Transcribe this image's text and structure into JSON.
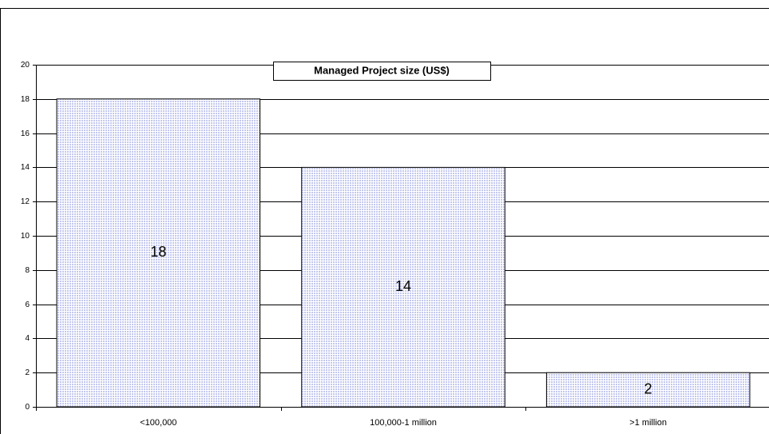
{
  "chart_data": {
    "type": "bar",
    "title": "Managed Project size (US$)",
    "categories": [
      "<100,000",
      "100,000-1 million",
      ">1 million"
    ],
    "values": [
      18,
      14,
      2
    ],
    "color": "#c3c8ee",
    "ylim": [
      0,
      20
    ],
    "yticks": [
      0,
      2,
      4,
      6,
      8,
      10,
      12,
      14,
      16,
      18,
      20
    ],
    "grid": true
  }
}
